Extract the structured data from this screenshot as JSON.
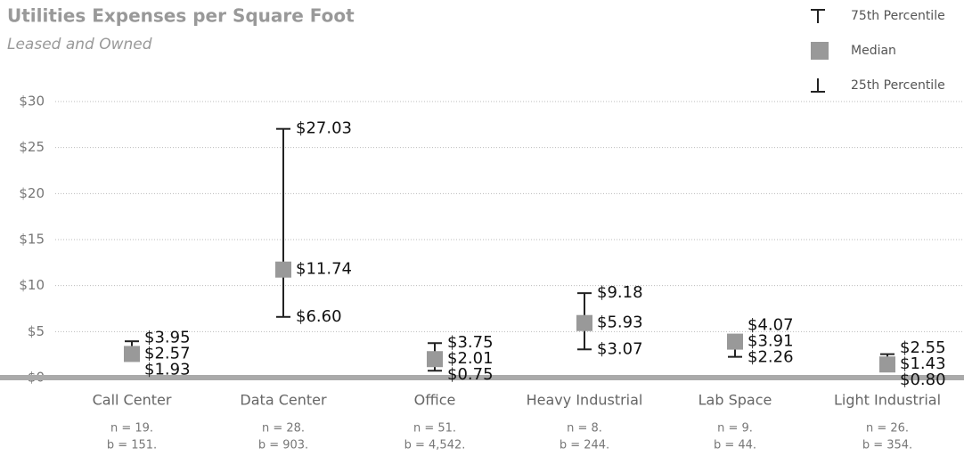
{
  "chart_data": {
    "type": "range",
    "title": "Utilities Expenses per Square Foot",
    "subtitle": "Leased and Owned",
    "categories": [
      "Call Center",
      "Data Center",
      "Office",
      "Heavy Industrial",
      "Lab Space",
      "Light Industrial"
    ],
    "sample_labels": [
      [
        "n = 19.",
        "b = 151."
      ],
      [
        "n = 28.",
        "b = 903."
      ],
      [
        "n = 51.",
        "b = 4,542."
      ],
      [
        "n = 8.",
        "b = 244."
      ],
      [
        "n = 9.",
        "b = 44."
      ],
      [
        "n = 26.",
        "b = 354."
      ]
    ],
    "series": [
      {
        "name": "75th Percentile",
        "color": "#222222",
        "values": [
          3.95,
          27.03,
          3.75,
          9.18,
          4.07,
          2.55
        ],
        "value_labels": [
          "$3.95",
          "$27.03",
          "$3.75",
          "$9.18",
          "$4.07",
          "$2.55"
        ]
      },
      {
        "name": "Median",
        "color": "#999999",
        "values": [
          2.57,
          11.74,
          2.01,
          5.93,
          3.91,
          1.43
        ],
        "value_labels": [
          "$2.57",
          "$11.74",
          "$2.01",
          "$5.93",
          "$3.91",
          "$1.43"
        ]
      },
      {
        "name": "25th Percentile",
        "color": "#222222",
        "values": [
          1.93,
          6.6,
          0.75,
          3.07,
          2.26,
          0.8
        ],
        "value_labels": [
          "$1.93",
          "$6.60",
          "$0.75",
          "$3.07",
          "$2.26",
          "$0.80"
        ]
      }
    ],
    "ylim": [
      0,
      30
    ],
    "yticks": [
      {
        "value": 0,
        "label": "$0"
      },
      {
        "value": 5,
        "label": "$5"
      },
      {
        "value": 10,
        "label": "$10"
      },
      {
        "value": 15,
        "label": "$15"
      },
      {
        "value": 20,
        "label": "$20"
      },
      {
        "value": 25,
        "label": "$25"
      },
      {
        "value": 30,
        "label": "$30"
      }
    ],
    "grid": true,
    "legend": "top-right"
  }
}
